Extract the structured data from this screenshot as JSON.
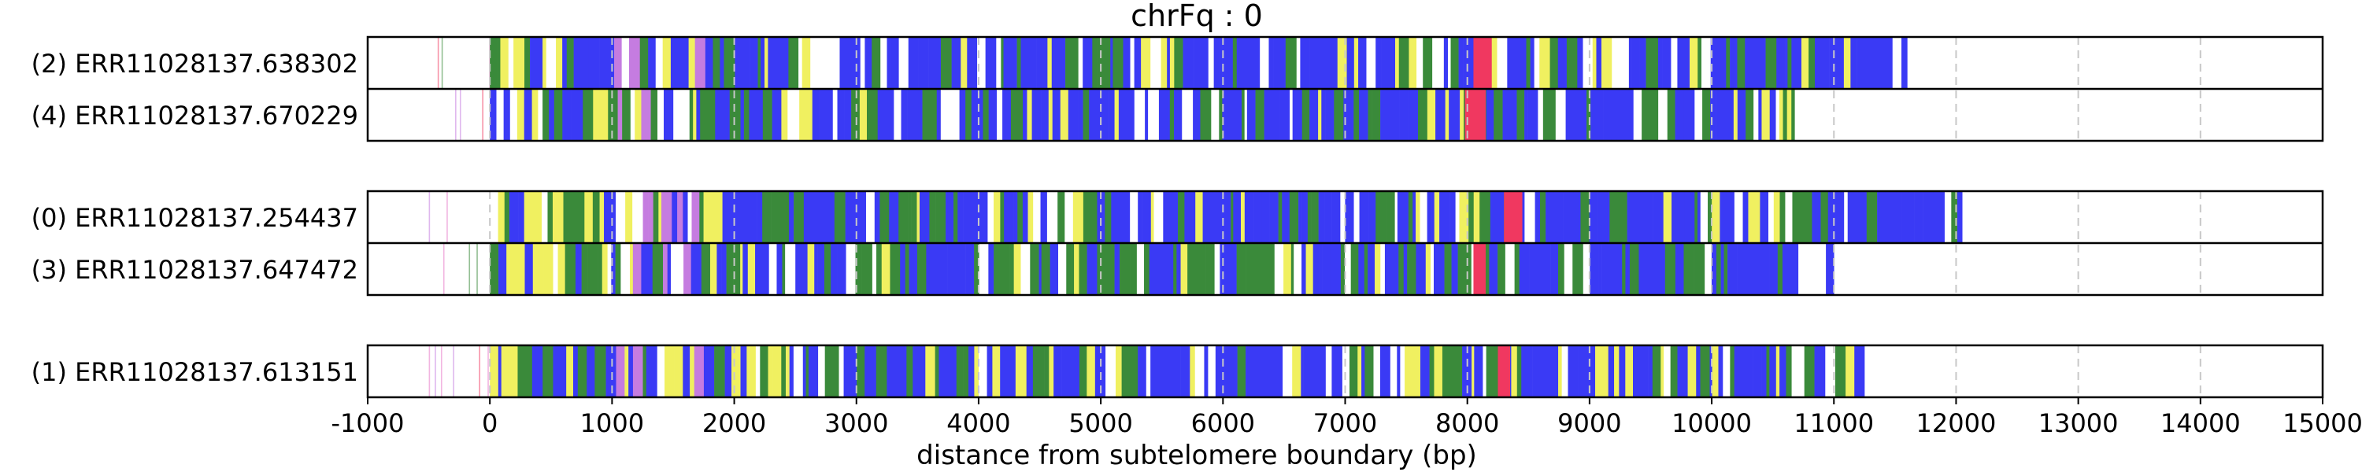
{
  "chart_data": {
    "type": "tandem-repeat read plot",
    "title": "chrFq : 0",
    "xlabel": "distance from subtelomere boundary (bp)",
    "xlim": [
      -1000,
      15000
    ],
    "xticks": [
      -1000,
      0,
      1000,
      2000,
      3000,
      4000,
      5000,
      6000,
      7000,
      8000,
      9000,
      10000,
      11000,
      12000,
      13000,
      14000,
      15000
    ],
    "xtick_labels": [
      "-1000",
      "0",
      "1000",
      "2000",
      "3000",
      "4000",
      "5000",
      "6000",
      "7000",
      "8000",
      "9000",
      "10000",
      "11000",
      "12000",
      "13000",
      "14000",
      "15000"
    ],
    "grid": "vertical dashed lines at x ticks",
    "groups": [
      {
        "reads": [
          {
            "label": "(2) ERR11028137.638302",
            "read_start": -450,
            "read_end": 11600,
            "highlight": [
              [
                8050,
                8200
              ]
            ]
          },
          {
            "label": "(4) ERR11028137.670229",
            "read_start": -500,
            "read_end": 10700,
            "highlight": [
              [
                7980,
                8150
              ]
            ]
          }
        ]
      },
      {
        "reads": [
          {
            "label": "(0) ERR11028137.254437",
            "read_start": -500,
            "read_end": 12050,
            "highlight": [
              [
                8300,
                8450
              ]
            ]
          },
          {
            "label": "(3) ERR11028137.647472",
            "read_start": -500,
            "read_end": 11000,
            "highlight": [
              [
                8050,
                8150
              ]
            ]
          }
        ]
      },
      {
        "reads": [
          {
            "label": "(1) ERR11028137.613151",
            "read_start": -500,
            "read_end": 11250,
            "highlight": [
              [
                8250,
                8350
              ]
            ]
          }
        ]
      }
    ],
    "colors": {
      "blue": "#3a3af5",
      "green": "#3a8a3a",
      "yellow": "#f0f060",
      "white": "#ffffff",
      "violet": "#c57ce0",
      "pink": "#e878c8",
      "red": "#f03860",
      "grid": "#c8c8c8"
    }
  }
}
